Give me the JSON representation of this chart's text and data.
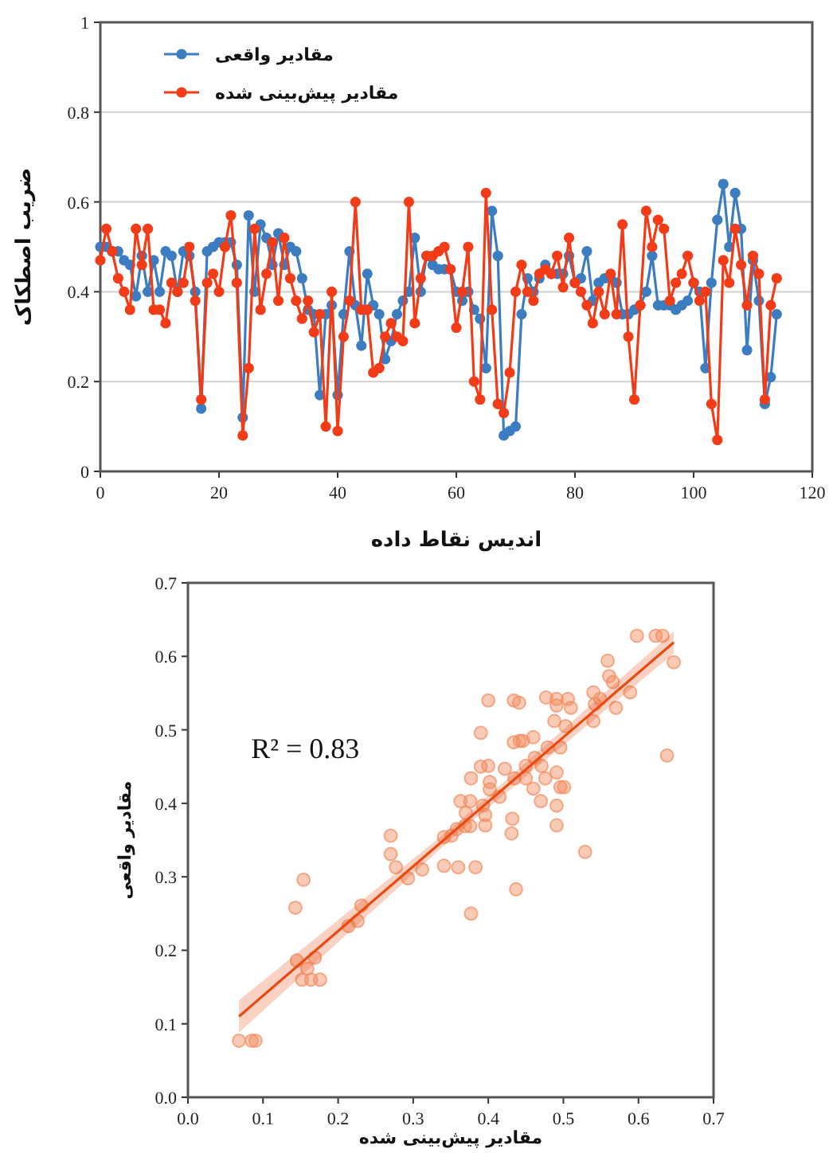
{
  "chart_data": [
    {
      "type": "line",
      "xlabel": "اندیس نقاط داده",
      "ylabel": "ضریب اصطکاک",
      "xlim": [
        0,
        120
      ],
      "ylim": [
        0,
        1
      ],
      "xticks": [
        0,
        20,
        40,
        60,
        80,
        100,
        120
      ],
      "yticks": [
        0,
        0.2,
        0.4,
        0.6,
        0.8,
        1
      ],
      "grid": "y",
      "legend": "top left",
      "marker": "circle",
      "x": [
        0,
        1,
        2,
        3,
        4,
        5,
        6,
        7,
        8,
        9,
        10,
        11,
        12,
        13,
        14,
        15,
        16,
        17,
        18,
        19,
        20,
        21,
        22,
        23,
        24,
        25,
        26,
        27,
        28,
        29,
        30,
        31,
        32,
        33,
        34,
        35,
        36,
        37,
        38,
        39,
        40,
        41,
        42,
        43,
        44,
        45,
        46,
        47,
        48,
        49,
        50,
        51,
        52,
        53,
        54,
        55,
        56,
        57,
        58,
        59,
        60,
        61,
        62,
        63,
        64,
        65,
        66,
        67,
        68,
        69,
        70,
        71,
        72,
        73,
        74,
        75,
        76,
        77,
        78,
        79,
        80,
        81,
        82,
        83,
        84,
        85,
        86,
        87,
        88,
        89,
        90,
        91,
        92,
        93,
        94,
        95,
        96,
        97,
        98,
        99,
        100,
        101,
        102,
        103,
        104,
        105,
        106,
        107,
        108,
        109,
        110,
        111,
        112,
        113,
        114
      ],
      "series": [
        {
          "name": "مقادیر واقعی",
          "color": "#3b7dc0",
          "values": [
            0.5,
            0.5,
            0.49,
            0.49,
            0.47,
            0.46,
            0.39,
            0.48,
            0.4,
            0.47,
            0.4,
            0.49,
            0.48,
            0.4,
            0.49,
            0.48,
            0.4,
            0.14,
            0.49,
            0.5,
            0.51,
            0.51,
            0.51,
            0.46,
            0.12,
            0.57,
            0.4,
            0.55,
            0.52,
            0.46,
            0.53,
            0.46,
            0.5,
            0.49,
            0.43,
            0.36,
            0.35,
            0.17,
            0.35,
            0.37,
            0.17,
            0.35,
            0.49,
            0.37,
            0.28,
            0.44,
            0.37,
            0.35,
            0.25,
            0.29,
            0.35,
            0.38,
            0.4,
            0.52,
            0.4,
            0.48,
            0.46,
            0.45,
            0.45,
            0.45,
            0.4,
            0.38,
            0.4,
            0.36,
            0.34,
            0.23,
            0.58,
            0.48,
            0.08,
            0.09,
            0.1,
            0.35,
            0.43,
            0.4,
            0.43,
            0.46,
            0.44,
            0.44,
            0.44,
            0.48,
            0.42,
            0.43,
            0.49,
            0.38,
            0.42,
            0.43,
            0.43,
            0.42,
            0.35,
            0.35,
            0.36,
            0.37,
            0.4,
            0.48,
            0.37,
            0.37,
            0.37,
            0.36,
            0.37,
            0.38,
            0.42,
            0.4,
            0.23,
            0.42,
            0.56,
            0.64,
            0.5,
            0.62,
            0.54,
            0.27,
            0.47,
            0.38,
            0.15,
            0.21,
            0.35
          ]
        },
        {
          "name": "مقادیر پیش‌بینی شده",
          "color": "#f23b17",
          "values": [
            0.47,
            0.54,
            0.49,
            0.43,
            0.4,
            0.36,
            0.54,
            0.46,
            0.54,
            0.36,
            0.36,
            0.33,
            0.42,
            0.4,
            0.42,
            0.5,
            0.38,
            0.16,
            0.42,
            0.44,
            0.4,
            0.5,
            0.57,
            0.42,
            0.08,
            0.23,
            0.54,
            0.36,
            0.44,
            0.51,
            0.38,
            0.52,
            0.43,
            0.38,
            0.34,
            0.38,
            0.31,
            0.35,
            0.1,
            0.4,
            0.09,
            0.3,
            0.38,
            0.6,
            0.36,
            0.36,
            0.22,
            0.23,
            0.3,
            0.33,
            0.3,
            0.29,
            0.6,
            0.33,
            0.43,
            0.48,
            0.48,
            0.49,
            0.5,
            0.45,
            0.32,
            0.4,
            0.5,
            0.2,
            0.16,
            0.62,
            0.36,
            0.15,
            0.13,
            0.22,
            0.4,
            0.46,
            0.4,
            0.38,
            0.44,
            0.45,
            0.44,
            0.48,
            0.41,
            0.52,
            0.42,
            0.4,
            0.37,
            0.33,
            0.4,
            0.35,
            0.44,
            0.35,
            0.55,
            0.3,
            0.16,
            0.37,
            0.58,
            0.5,
            0.56,
            0.54,
            0.38,
            0.42,
            0.44,
            0.48,
            0.42,
            0.38,
            0.4,
            0.15,
            0.07,
            0.47,
            0.42,
            0.54,
            0.46,
            0.37,
            0.48,
            0.44,
            0.16,
            0.37,
            0.43
          ]
        }
      ]
    },
    {
      "type": "scatter",
      "xlabel": "مقادیر پیش‌بینی شده",
      "ylabel": "مقادیر واقعی",
      "xlim": [
        0,
        0.7
      ],
      "ylim": [
        0,
        0.7
      ],
      "xticks": [
        {
          "value": 0,
          "label": "0.0"
        },
        0.1,
        0.2,
        0.3,
        0.4,
        0.5,
        0.6,
        0.7
      ],
      "yticks": [
        {
          "value": 0,
          "label": "0.0"
        },
        0.1,
        0.2,
        0.3,
        0.4,
        0.5,
        0.6,
        0.7
      ],
      "annotations": [
        "R² = 0.83"
      ],
      "series": [
        {
          "color": "#f28b5e",
          "marker": "circle",
          "x": [
            0.068,
            0.085,
            0.09,
            0.143,
            0.154,
            0.145,
            0.169,
            0.152,
            0.164,
            0.176,
            0.159,
            0.214,
            0.226,
            0.231,
            0.27,
            0.27,
            0.277,
            0.293,
            0.312,
            0.341,
            0.36,
            0.383,
            0.377,
            0.341,
            0.351,
            0.358,
            0.369,
            0.376,
            0.363,
            0.376,
            0.37,
            0.396,
            0.396,
            0.393,
            0.377,
            0.39,
            0.4,
            0.39,
            0.4,
            0.402,
            0.402,
            0.422,
            0.415,
            0.432,
            0.431,
            0.437,
            0.434,
            0.441,
            0.434,
            0.442,
            0.446,
            0.435,
            0.45,
            0.45,
            0.46,
            0.46,
            0.47,
            0.471,
            0.462,
            0.476,
            0.477,
            0.491,
            0.491,
            0.506,
            0.51,
            0.488,
            0.503,
            0.479,
            0.496,
            0.491,
            0.491,
            0.491,
            0.496,
            0.501,
            0.529,
            0.54,
            0.54,
            0.542,
            0.549,
            0.57,
            0.559,
            0.561,
            0.566,
            0.589,
            0.598,
            0.623,
            0.632,
            0.647,
            0.638
          ],
          "values": [
            0.077,
            0.077,
            0.077,
            0.258,
            0.296,
            0.186,
            0.19,
            0.16,
            0.16,
            0.16,
            0.175,
            0.233,
            0.24,
            0.261,
            0.356,
            0.331,
            0.313,
            0.298,
            0.31,
            0.315,
            0.313,
            0.313,
            0.25,
            0.354,
            0.356,
            0.365,
            0.369,
            0.369,
            0.403,
            0.403,
            0.387,
            0.384,
            0.37,
            0.397,
            0.434,
            0.45,
            0.451,
            0.496,
            0.54,
            0.429,
            0.419,
            0.447,
            0.409,
            0.379,
            0.359,
            0.283,
            0.54,
            0.537,
            0.483,
            0.485,
            0.485,
            0.434,
            0.434,
            0.451,
            0.49,
            0.42,
            0.403,
            0.451,
            0.462,
            0.434,
            0.544,
            0.542,
            0.533,
            0.542,
            0.53,
            0.512,
            0.505,
            0.476,
            0.476,
            0.442,
            0.397,
            0.37,
            0.422,
            0.422,
            0.334,
            0.512,
            0.551,
            0.535,
            0.542,
            0.53,
            0.594,
            0.573,
            0.565,
            0.551,
            0.628,
            0.628,
            0.628,
            0.592,
            0.465
          ]
        },
        {
          "type": "line",
          "color": "#e84a12",
          "marker": "none",
          "x": [
            0.068,
            0.36,
            0.647
          ],
          "values": [
            0.11,
            0.367,
            0.619
          ],
          "lower": [
            0.088,
            0.36,
            0.604
          ],
          "upper": [
            0.132,
            0.374,
            0.634
          ]
        }
      ]
    }
  ]
}
